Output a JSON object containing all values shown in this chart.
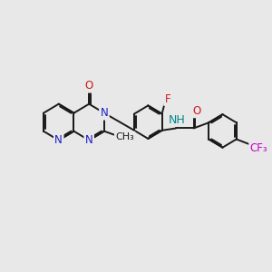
{
  "fig_bg": "#e8e8e8",
  "bond_color": "#1a1a1a",
  "bond_width": 1.4,
  "dbo": 0.055,
  "atom_colors": {
    "N": "#1a1acc",
    "O": "#cc1a1a",
    "F": "#cc1a1a",
    "CF3": "#cc00cc",
    "NH": "#008888",
    "C": "#1a1a1a"
  },
  "fs": 8.5
}
